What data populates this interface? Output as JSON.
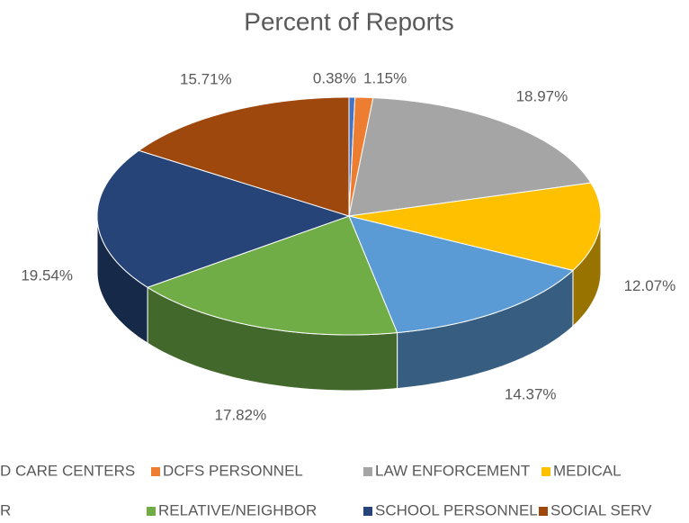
{
  "chart_data": {
    "type": "pie",
    "title": "Percent of Reports",
    "categories": [
      "D CARE CENTERS",
      "DCFS PERSONNEL",
      "LAW ENFORCEMENT",
      "MEDICAL",
      "R",
      "RELATIVE/NEIGHBOR",
      "SCHOOL PERSONNEL",
      "SOCIAL SERV"
    ],
    "values": [
      0.38,
      1.15,
      18.97,
      12.07,
      14.37,
      17.82,
      19.54,
      15.71
    ],
    "value_labels": [
      "0.38%",
      "1.15%",
      "18.97%",
      "12.07%",
      "14.37%",
      "17.82%",
      "19.54%",
      "15.71%"
    ],
    "colors": [
      "#4472c4",
      "#ed7d31",
      "#a5a5a5",
      "#ffc000",
      "#5b9bd5",
      "#70ad47",
      "#264478",
      "#9e480e"
    ],
    "legend": "bottom"
  }
}
